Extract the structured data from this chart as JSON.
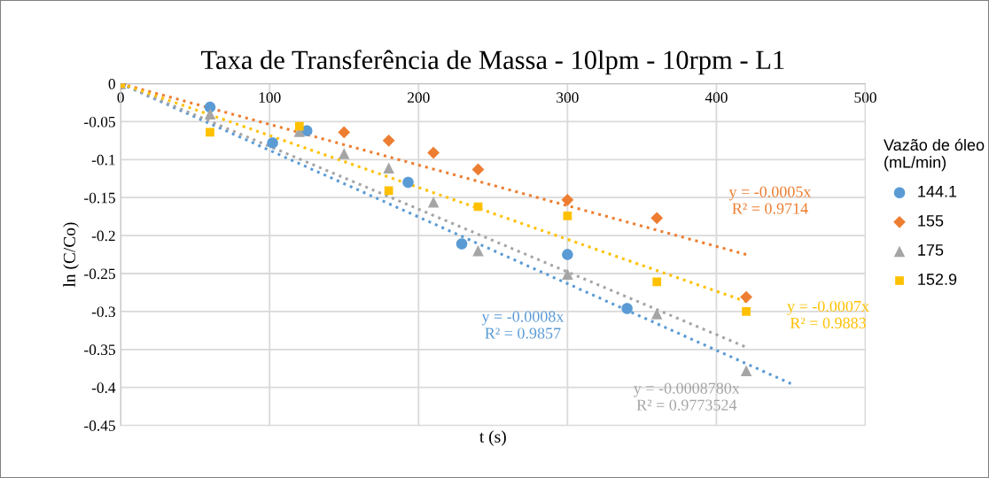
{
  "chart_data": {
    "type": "scatter",
    "title": "Taxa de Transferência de Massa - 10lpm - 10rpm - L1",
    "xlabel": "t (s)",
    "ylabel": "ln (C/Co)",
    "legend_title": "Vazão de óleo\n(mL/min)",
    "xlim": [
      0,
      500
    ],
    "xticks": [
      0,
      100,
      200,
      300,
      400,
      500
    ],
    "ylim": [
      -0.45,
      0
    ],
    "yticks": [
      0,
      -0.05,
      -0.1,
      -0.15,
      -0.2,
      -0.25,
      -0.3,
      -0.35,
      -0.4,
      -0.45
    ],
    "grid": true,
    "legend": "right",
    "series": [
      {
        "name": "144.1",
        "color": "#5b9bd5",
        "marker": "circle",
        "x": [
          0,
          60,
          102,
          125,
          193,
          229,
          300,
          340
        ],
        "values": [
          0,
          -0.031,
          -0.078,
          -0.062,
          -0.13,
          -0.211,
          -0.225,
          -0.296
        ]
      },
      {
        "name": "155",
        "color": "#ed7d31",
        "marker": "diamond",
        "x": [
          0,
          150,
          180,
          210,
          240,
          300,
          360,
          420
        ],
        "values": [
          0,
          -0.064,
          -0.075,
          -0.091,
          -0.113,
          -0.153,
          -0.177,
          -0.281
        ]
      },
      {
        "name": "175",
        "color": "#a5a5a5",
        "marker": "triangle",
        "x": [
          0,
          60,
          120,
          150,
          180,
          210,
          240,
          300,
          360,
          420
        ],
        "values": [
          0,
          -0.04,
          -0.063,
          -0.092,
          -0.111,
          -0.156,
          -0.22,
          -0.251,
          -0.303,
          -0.378
        ]
      },
      {
        "name": "152.9",
        "color": "#ffc000",
        "marker": "square",
        "x": [
          0,
          60,
          120,
          180,
          240,
          300,
          360,
          420
        ],
        "values": [
          0,
          -0.064,
          -0.056,
          -0.141,
          -0.162,
          -0.174,
          -0.261,
          -0.3
        ]
      },
      {
        "type": "line",
        "color": "#ed7d31",
        "line_style": "dotted",
        "x": [
          0,
          420
        ],
        "values": [
          0,
          -0.225
        ]
      },
      {
        "type": "line",
        "color": "#5b9bd5",
        "line_style": "dotted",
        "x": [
          0,
          450
        ],
        "values": [
          0,
          -0.395
        ]
      },
      {
        "type": "line",
        "color": "#a5a5a5",
        "line_style": "dotted",
        "x": [
          0,
          420
        ],
        "values": [
          0,
          -0.347
        ]
      },
      {
        "type": "line",
        "color": "#ffc000",
        "line_style": "dotted",
        "x": [
          0,
          420
        ],
        "values": [
          0,
          -0.287
        ]
      }
    ],
    "annotations": [
      "y = -0.0005x\nR² = 0.9714",
      "y = -0.0008x\nR² = 0.9857",
      "y = -0.0008780x\nR² = 0.9773524",
      "y = -0.0007x\nR² = 0.9883"
    ]
  }
}
